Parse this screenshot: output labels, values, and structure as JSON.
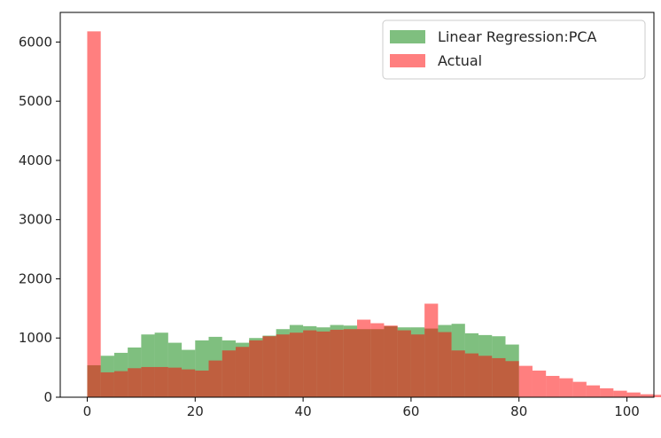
{
  "chart_data": {
    "type": "histogram",
    "title": "",
    "xlabel": "",
    "ylabel": "",
    "xlim": [
      -5,
      105
    ],
    "ylim": [
      0,
      6500
    ],
    "bin_width": 2.5,
    "x_ticks": [
      0,
      20,
      40,
      60,
      80,
      100
    ],
    "y_ticks": [
      0,
      1000,
      2000,
      3000,
      4000,
      5000,
      6000
    ],
    "legend_position": "top-right",
    "series": [
      {
        "name": "Linear Regression:PCA",
        "color": "#008000",
        "opacity": 0.5,
        "bin_start": 0,
        "values": [
          540,
          700,
          750,
          840,
          1060,
          1090,
          920,
          800,
          960,
          1020,
          960,
          920,
          1000,
          1040,
          1150,
          1220,
          1200,
          1180,
          1220,
          1210,
          1150,
          1150,
          1200,
          1180,
          1180,
          1160,
          1220,
          1240,
          1080,
          1050,
          1030,
          890
        ]
      },
      {
        "name": "Actual",
        "color": "#ff0000",
        "opacity": 0.5,
        "bin_start": 0,
        "values": [
          6180,
          420,
          440,
          490,
          510,
          510,
          500,
          470,
          450,
          620,
          790,
          850,
          960,
          1030,
          1060,
          1090,
          1130,
          1110,
          1140,
          1150,
          1310,
          1250,
          1210,
          1130,
          1060,
          1580,
          1100,
          790,
          740,
          700,
          660,
          610,
          530,
          450,
          360,
          320,
          260,
          200,
          150,
          110,
          80,
          50,
          40,
          30,
          20,
          10,
          5,
          3,
          2
        ]
      }
    ]
  }
}
